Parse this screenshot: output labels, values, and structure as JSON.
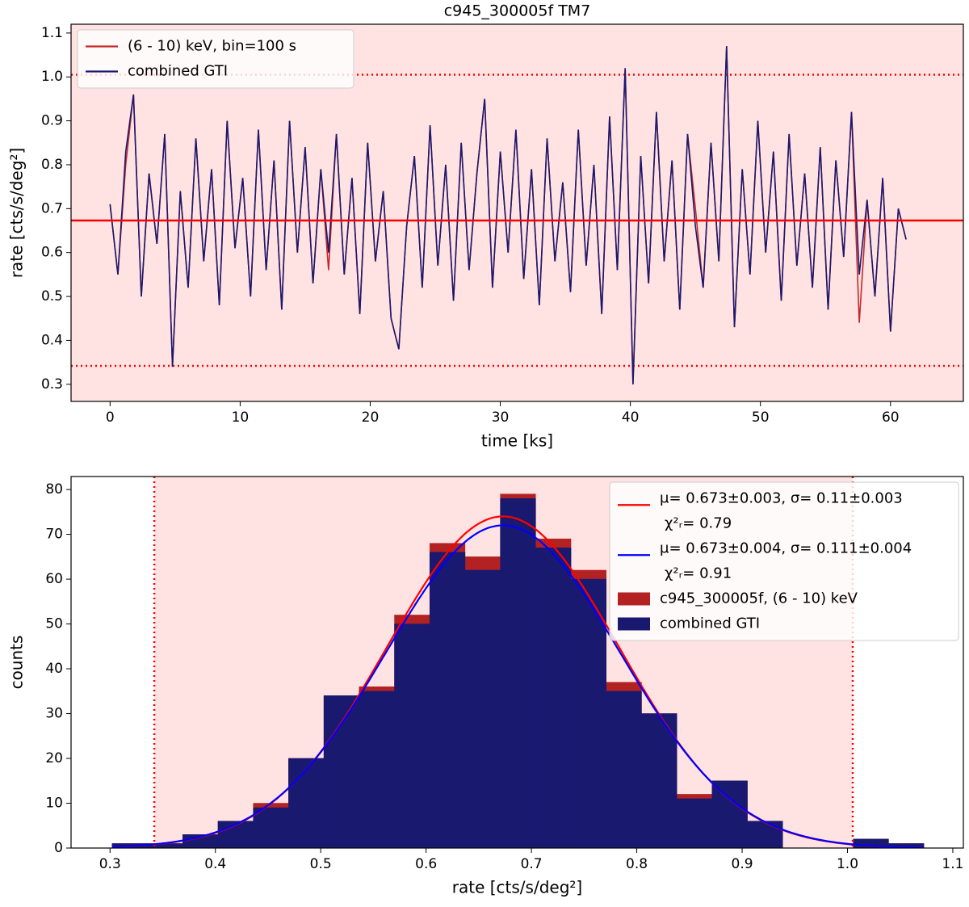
{
  "chart_data": [
    {
      "type": "line",
      "title": "c945_300005f TM7",
      "xlabel": "time [ks]",
      "ylabel": "rate [cts/s/deg²]",
      "x": [
        0.0,
        0.6,
        1.2,
        1.8,
        2.4,
        3.0,
        3.6,
        4.2,
        4.8,
        5.4,
        6.0,
        6.6,
        7.2,
        7.8,
        8.4,
        9.0,
        9.6,
        10.2,
        10.8,
        11.4,
        12.0,
        12.6,
        13.2,
        13.8,
        14.4,
        15.0,
        15.6,
        16.2,
        16.8,
        17.4,
        18.0,
        18.6,
        19.2,
        19.8,
        20.4,
        21.0,
        21.6,
        22.2,
        22.8,
        23.4,
        24.0,
        24.6,
        25.2,
        25.8,
        26.4,
        27.0,
        27.6,
        28.2,
        28.8,
        29.4,
        30.0,
        30.6,
        31.2,
        31.8,
        32.4,
        33.0,
        33.6,
        34.2,
        34.8,
        35.4,
        36.0,
        36.6,
        37.2,
        37.8,
        38.4,
        39.0,
        39.6,
        40.2,
        40.8,
        41.4,
        42.0,
        42.6,
        43.2,
        43.8,
        44.4,
        45.0,
        45.6,
        46.2,
        46.8,
        47.4,
        48.0,
        48.6,
        49.2,
        49.8,
        50.4,
        51.0,
        51.6,
        52.2,
        52.8,
        53.4,
        54.0,
        54.6,
        55.2,
        55.8,
        56.4,
        57.0,
        57.6,
        58.2,
        58.8,
        59.4,
        60.0,
        60.6,
        61.2
      ],
      "series": [
        {
          "name": "(6 - 10) keV, bin=100 s",
          "color": "#c62828",
          "values": [
            0.71,
            0.55,
            0.8,
            0.96,
            0.5,
            0.78,
            0.62,
            0.87,
            0.34,
            0.74,
            0.52,
            0.86,
            0.58,
            0.79,
            0.48,
            0.9,
            0.61,
            0.77,
            0.5,
            0.88,
            0.56,
            0.81,
            0.47,
            0.9,
            0.6,
            0.84,
            0.53,
            0.79,
            0.56,
            0.87,
            0.55,
            0.77,
            0.46,
            0.85,
            0.58,
            0.74,
            0.45,
            0.38,
            0.66,
            0.82,
            0.52,
            0.89,
            0.57,
            0.8,
            0.49,
            0.85,
            0.56,
            0.78,
            0.95,
            0.52,
            0.83,
            0.6,
            0.88,
            0.54,
            0.79,
            0.48,
            0.86,
            0.58,
            0.76,
            0.51,
            0.88,
            0.57,
            0.8,
            0.46,
            0.91,
            0.56,
            1.02,
            0.3,
            0.82,
            0.53,
            0.92,
            0.58,
            0.81,
            0.47,
            0.87,
            0.7,
            0.52,
            0.85,
            0.58,
            1.07,
            0.43,
            0.79,
            0.55,
            0.9,
            0.6,
            0.83,
            0.49,
            0.87,
            0.57,
            0.78,
            0.52,
            0.84,
            0.47,
            0.81,
            0.59,
            0.92,
            0.44,
            0.72,
            0.5,
            0.77,
            0.42,
            0.7,
            0.63
          ]
        },
        {
          "name": "combined GTI",
          "color": "#191970",
          "values": [
            0.71,
            0.55,
            0.83,
            0.96,
            0.5,
            0.78,
            0.62,
            0.87,
            0.34,
            0.74,
            0.52,
            0.86,
            0.58,
            0.79,
            0.48,
            0.9,
            0.61,
            0.77,
            0.5,
            0.88,
            0.56,
            0.81,
            0.47,
            0.9,
            0.6,
            0.84,
            0.53,
            0.79,
            0.6,
            0.87,
            0.55,
            0.77,
            0.46,
            0.85,
            0.58,
            0.74,
            0.45,
            0.38,
            0.66,
            0.82,
            0.52,
            0.89,
            0.57,
            0.8,
            0.49,
            0.85,
            0.56,
            0.78,
            0.95,
            0.52,
            0.83,
            0.6,
            0.88,
            0.54,
            0.79,
            0.48,
            0.86,
            0.58,
            0.76,
            0.51,
            0.88,
            0.57,
            0.8,
            0.46,
            0.91,
            0.56,
            1.02,
            0.3,
            0.82,
            0.53,
            0.92,
            0.58,
            0.81,
            0.47,
            0.87,
            0.66,
            0.52,
            0.85,
            0.58,
            1.07,
            0.43,
            0.79,
            0.55,
            0.9,
            0.6,
            0.83,
            0.49,
            0.87,
            0.57,
            0.78,
            0.52,
            0.84,
            0.47,
            0.81,
            0.59,
            0.92,
            0.55,
            0.72,
            0.5,
            0.77,
            0.42,
            0.7,
            0.63
          ]
        }
      ],
      "mean": 0.673,
      "limits": [
        0.342,
        1.005
      ],
      "reference_color": "#ff0000",
      "xlim": [
        -3,
        65.6
      ],
      "ylim": [
        0.261,
        1.12
      ],
      "xticks": [
        0,
        10,
        20,
        30,
        40,
        50,
        60
      ],
      "yticks": [
        0.3,
        0.4,
        0.5,
        0.6,
        0.7,
        0.8,
        0.9,
        {
          "value": 1,
          "label": "1.0"
        },
        1.1
      ],
      "legend": "upper left"
    },
    {
      "type": "histogram",
      "xlabel": "rate [cts/s/deg²]",
      "ylabel": "counts",
      "bins": [
        0.302,
        0.3355,
        0.369,
        0.4025,
        0.436,
        0.4695,
        0.503,
        0.5365,
        0.57,
        0.6035,
        0.637,
        0.6705,
        0.704,
        0.7375,
        0.771,
        0.8045,
        0.838,
        0.8715,
        0.905,
        0.9385,
        0.972,
        1.0055,
        1.039,
        1.0725
      ],
      "series": [
        {
          "name": "c945_300005f, (6 - 10) keV",
          "color": "#b22222",
          "values": [
            1,
            1,
            3,
            6,
            10,
            20,
            34,
            36,
            52,
            68,
            65,
            79,
            69,
            62,
            37,
            30,
            12,
            15,
            6,
            0,
            0,
            2,
            1
          ]
        },
        {
          "name": "combined GTI",
          "color": "#191970",
          "values": [
            1,
            1,
            3,
            6,
            9,
            20,
            34,
            35,
            50,
            66,
            62,
            78,
            67,
            60,
            35,
            30,
            11,
            15,
            6,
            0,
            0,
            2,
            1
          ]
        }
      ],
      "fits": [
        {
          "name": "μ= 0.673±0.003, σ= 0.11±0.003",
          "chi2": "χ²ᵣ= 0.79",
          "color": "#ff0000",
          "mu": 0.673,
          "sigma": 0.11,
          "amplitude": 74
        },
        {
          "name": "μ= 0.673±0.004, σ= 0.111±0.004",
          "chi2": "χ²ᵣ= 0.91",
          "color": "#0000ff",
          "mu": 0.673,
          "sigma": 0.111,
          "amplitude": 72
        }
      ],
      "limits": [
        0.342,
        1.005
      ],
      "reference_color": "#ff0000",
      "xlim": [
        0.263,
        1.11
      ],
      "ylim": [
        0,
        82.9
      ],
      "xticks": [
        0.3,
        0.4,
        0.5,
        0.6,
        0.7,
        0.8,
        0.9,
        {
          "value": 1,
          "label": "1.0"
        },
        1.1
      ],
      "yticks": [
        0,
        10,
        20,
        30,
        40,
        50,
        60,
        70,
        80
      ],
      "legend": "upper right"
    }
  ]
}
